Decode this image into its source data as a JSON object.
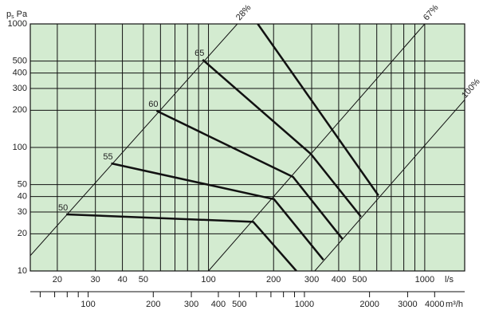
{
  "chart_data": {
    "type": "line",
    "y_label": {
      "symbol": "p",
      "subscript": "s",
      "unit": "Pa"
    },
    "x_unit": "l/s",
    "x2_unit": "m³/h",
    "log_x": true,
    "log_y": true,
    "grid": true,
    "background": "#d3ebd0",
    "line_color": "#111111",
    "xlim": [
      15,
      1530
    ],
    "ylim": [
      10,
      1000
    ],
    "x2lim": [
      54,
      5508
    ],
    "xticks": [
      20,
      30,
      40,
      50,
      100,
      200,
      300,
      400,
      500,
      1000
    ],
    "xgrid_minor": [
      60,
      70,
      80,
      90,
      600,
      700,
      800,
      900
    ],
    "yticks": [
      10,
      20,
      30,
      40,
      50,
      100,
      200,
      300,
      400,
      500,
      1000
    ],
    "x2ticks": [
      100,
      200,
      300,
      400,
      500,
      1000,
      2000,
      3000,
      4000
    ],
    "x2ticks_minor": [
      60,
      70,
      80,
      90,
      600,
      700,
      800,
      900
    ],
    "series": [
      {
        "name": "50",
        "x": [
          22,
          161,
          255
        ],
        "values": [
          28.7,
          25,
          10
        ]
      },
      {
        "name": "55",
        "x": [
          35.5,
          201,
          340
        ],
        "values": [
          74.3,
          38.1,
          12.3
        ]
      },
      {
        "name": "60",
        "x": [
          57.5,
          246,
          417
        ],
        "values": [
          198,
          57.7,
          18.1
        ]
      },
      {
        "name": "65",
        "x": [
          94,
          297,
          507
        ],
        "values": [
          513,
          88.8,
          27.5
        ]
      },
      {
        "name": null,
        "x": [
          169,
          611
        ],
        "values": [
          1000,
          40.8
        ]
      }
    ],
    "system_lines": [
      {
        "label": "28%",
        "x": [
          15,
          136
        ],
        "values": [
          13.3,
          1000
        ]
      },
      {
        "label": "67%",
        "x": [
          100,
          1000
        ],
        "values": [
          10,
          1000
        ]
      },
      {
        "label": "100%",
        "x": [
          310,
          1530
        ],
        "values": [
          10,
          243
        ]
      }
    ]
  }
}
